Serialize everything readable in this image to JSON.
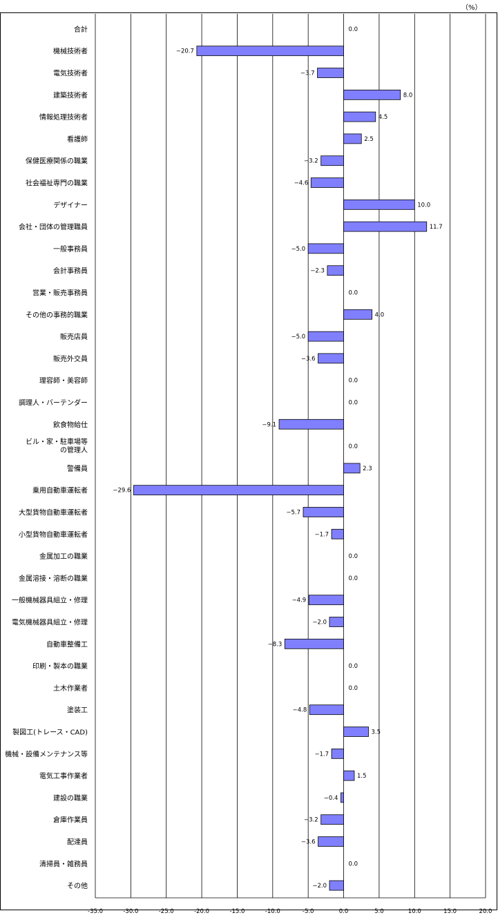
{
  "unit_label": "（%）",
  "chart_data": {
    "type": "bar",
    "orientation": "horizontal",
    "xlim": [
      -35.0,
      20.0
    ],
    "x_ticks": [
      "-35.0",
      "-30.0",
      "-25.0",
      "-20.0",
      "-15.0",
      "-10.0",
      "-5.0",
      "0.0",
      "5.0",
      "10.0",
      "15.0",
      "20.0"
    ],
    "grid": true,
    "bar_color": "#8080ff",
    "categories": [
      "合計",
      "機械技術者",
      "電気技術者",
      "建築技術者",
      "情報処理技術者",
      "看護師",
      "保健医療関係の職業",
      "社会福祉専門の職業",
      "デザイナー",
      "会社・団体の管理職員",
      "一般事務員",
      "会計事務員",
      "営業・販売事務員",
      "その他の事務的職業",
      "販売店員",
      "販売外交員",
      "理容師・美容師",
      "調理人・バーテンダー",
      "飲食物給仕",
      "ビル・家・駐車場等\nの管理人",
      "警備員",
      "乗用自動車運転者",
      "大型貨物自動車運転者",
      "小型貨物自動車運転者",
      "金属加工の職業",
      "金属溶接・溶断の職業",
      "一般機械器具組立・修理",
      "電気機械器具組立・修理",
      "自動車整備工",
      "印刷・製本の職業",
      "土木作業者",
      "塗装工",
      "製図工(トレース・CAD)",
      "機械・設備メンテナンス等",
      "電気工事作業者",
      "建設の職業",
      "倉庫作業員",
      "配達員",
      "清掃員・雑務員",
      "その他"
    ],
    "values": [
      0.0,
      -20.7,
      -3.7,
      8.0,
      4.5,
      2.5,
      -3.2,
      -4.6,
      10.0,
      11.7,
      -5.0,
      -2.3,
      0.0,
      4.0,
      -5.0,
      -3.6,
      0.0,
      0.0,
      -9.1,
      0.0,
      2.3,
      -29.6,
      -5.7,
      -1.7,
      0.0,
      0.0,
      -4.9,
      -2.0,
      -8.3,
      0.0,
      0.0,
      -4.8,
      3.5,
      -1.7,
      1.5,
      -0.4,
      -3.2,
      -3.6,
      0.0,
      -2.0
    ],
    "value_labels": [
      "0.0",
      "−20.7",
      "−3.7",
      "8.0",
      "4.5",
      "2.5",
      "−3.2",
      "−4.6",
      "10.0",
      "11.7",
      "−5.0",
      "−2.3",
      "0.0",
      "4.0",
      "−5.0",
      "−3.6",
      "0.0",
      "0.0",
      "−9.1",
      "0.0",
      "2.3",
      "−29.6",
      "−5.7",
      "−1.7",
      "0.0",
      "0.0",
      "−4.9",
      "−2.0",
      "−8.3",
      "0.0",
      "0.0",
      "−4.8",
      "3.5",
      "−1.7",
      "1.5",
      "−0.4",
      "−3.2",
      "−3.6",
      "0.0",
      "−2.0"
    ]
  }
}
